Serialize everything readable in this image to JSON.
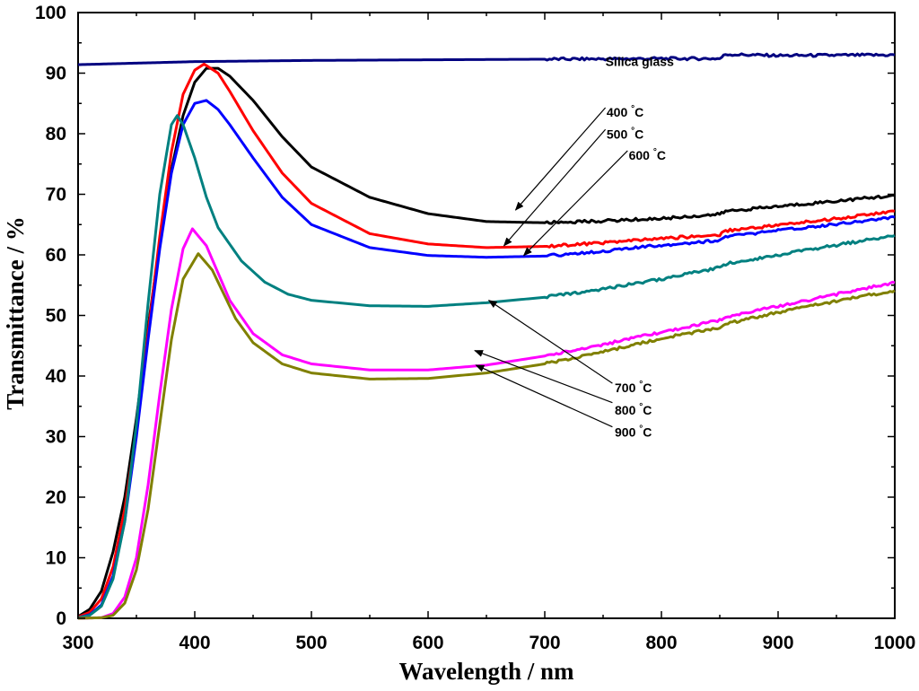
{
  "chart_data": {
    "type": "line",
    "title": "",
    "xlabel": "Wavelength / nm",
    "ylabel": "Transmittance / %",
    "xlim": [
      300,
      1000
    ],
    "ylim": [
      0,
      100
    ],
    "xticks": [
      "300",
      "400",
      "500",
      "600",
      "700",
      "800",
      "900",
      "1000"
    ],
    "yticks": [
      "0",
      "10",
      "20",
      "30",
      "40",
      "50",
      "60",
      "70",
      "80",
      "90",
      "100"
    ],
    "grid": false,
    "series": [
      {
        "name": "Silica glass",
        "color": "#000080",
        "x": [
          300,
          400,
          500,
          600,
          700,
          800,
          850,
          855,
          900,
          1000
        ],
        "y": [
          91.4,
          91.9,
          92.1,
          92.2,
          92.3,
          92.4,
          92.4,
          93.1,
          92.9,
          93.0
        ]
      },
      {
        "name": "400 °C",
        "color": "#000000",
        "x": [
          300,
          310,
          320,
          330,
          340,
          350,
          360,
          370,
          380,
          390,
          400,
          410,
          420,
          430,
          450,
          475,
          500,
          550,
          600,
          650,
          700,
          750,
          800,
          850,
          855,
          900,
          950,
          1000
        ],
        "y": [
          0.3,
          1.5,
          4.5,
          11,
          20,
          33,
          48,
          62,
          74,
          83,
          88.5,
          90.8,
          90.8,
          89.5,
          85.5,
          79.5,
          74.5,
          69.5,
          66.8,
          65.5,
          65.3,
          65.6,
          66.0,
          66.7,
          67.2,
          68.0,
          68.9,
          69.8
        ]
      },
      {
        "name": "500 °C",
        "color": "#ff0000",
        "x": [
          300,
          310,
          320,
          330,
          340,
          350,
          360,
          370,
          380,
          390,
          400,
          408,
          420,
          430,
          450,
          475,
          500,
          550,
          600,
          650,
          700,
          750,
          800,
          850,
          855,
          900,
          950,
          1000
        ],
        "y": [
          0.2,
          1.0,
          3.2,
          8.5,
          18,
          31,
          47,
          63,
          77,
          86.5,
          90.5,
          91.5,
          90,
          87,
          80.5,
          73.5,
          68.5,
          63.5,
          61.8,
          61.2,
          61.4,
          62.0,
          62.7,
          63.3,
          64.0,
          64.9,
          66.0,
          67.2
        ]
      },
      {
        "name": "600 °C",
        "color": "#0000ff",
        "x": [
          300,
          310,
          320,
          330,
          340,
          350,
          360,
          370,
          380,
          390,
          400,
          410,
          420,
          430,
          450,
          475,
          500,
          550,
          600,
          650,
          700,
          750,
          800,
          850,
          855,
          900,
          950,
          1000
        ],
        "y": [
          0.1,
          0.6,
          2.2,
          7,
          16,
          30,
          46,
          61,
          73.5,
          81.5,
          85,
          85.5,
          84,
          81.5,
          76,
          69.5,
          65,
          61.2,
          59.9,
          59.6,
          59.8,
          60.6,
          61.6,
          62.4,
          63.0,
          64.0,
          65.1,
          66.2
        ]
      },
      {
        "name": "700 °C",
        "color": "#008080",
        "x": [
          300,
          310,
          320,
          330,
          340,
          350,
          360,
          370,
          380,
          385,
          390,
          400,
          410,
          420,
          440,
          460,
          480,
          500,
          550,
          600,
          650,
          700,
          750,
          800,
          850,
          855,
          900,
          950,
          1000
        ],
        "y": [
          0.1,
          0.5,
          2.0,
          6.5,
          16,
          32,
          52,
          70,
          81.5,
          83,
          81.5,
          76,
          69.5,
          64.5,
          59,
          55.5,
          53.5,
          52.5,
          51.6,
          51.5,
          52.1,
          53.0,
          54.4,
          56.0,
          57.9,
          58.5,
          60.0,
          61.6,
          63.2
        ]
      },
      {
        "name": "800 °C",
        "color": "#ff00ff",
        "x": [
          300,
          320,
          330,
          340,
          350,
          360,
          370,
          380,
          390,
          398,
          410,
          420,
          430,
          450,
          475,
          500,
          550,
          600,
          650,
          700,
          750,
          800,
          850,
          855,
          900,
          950,
          1000
        ],
        "y": [
          0,
          0.1,
          0.8,
          3.5,
          10,
          22,
          37,
          51,
          61,
          64.3,
          61.5,
          57,
          52.5,
          47,
          43.5,
          42,
          41,
          41,
          41.8,
          43.3,
          45.2,
          47.2,
          49.2,
          49.8,
          51.5,
          53.5,
          55.4
        ]
      },
      {
        "name": "900 °C",
        "color": "#808000",
        "x": [
          300,
          320,
          330,
          340,
          350,
          360,
          370,
          380,
          390,
          403,
          415,
          425,
          435,
          450,
          475,
          500,
          550,
          600,
          650,
          700,
          750,
          800,
          850,
          855,
          900,
          950,
          1000
        ],
        "y": [
          0,
          0.1,
          0.5,
          2.5,
          8,
          18,
          32,
          46,
          56,
          60.2,
          57.5,
          53.5,
          49.5,
          45.5,
          42,
          40.5,
          39.5,
          39.6,
          40.5,
          42,
          44,
          46.2,
          48,
          48.6,
          50.5,
          52.4,
          54.1
        ]
      }
    ],
    "annotations": [
      {
        "text": "Silica glass",
        "label_at": [
          752,
          91.2
        ]
      },
      {
        "text": "400 °C",
        "label_at": [
          753,
          82.8
        ],
        "arrow_from": [
          752,
          84.3
        ],
        "arrow_to": [
          675,
          67.4
        ]
      },
      {
        "text": "500 °C",
        "label_at": [
          753,
          79.2
        ],
        "arrow_from": [
          752,
          80.7
        ],
        "arrow_to": [
          665,
          61.5
        ]
      },
      {
        "text": "600 °C",
        "label_at": [
          772,
          75.7
        ],
        "arrow_from": [
          771,
          77.2
        ],
        "arrow_to": [
          682,
          59.9
        ]
      },
      {
        "text": "700 °C",
        "label_at": [
          760,
          37.3
        ],
        "arrow_from": [
          758,
          38.8
        ],
        "arrow_to": [
          652,
          52.5
        ]
      },
      {
        "text": "800 °C",
        "label_at": [
          760,
          33.6
        ],
        "arrow_from": [
          758,
          35.6
        ],
        "arrow_to": [
          640,
          44.2
        ]
      },
      {
        "text": "900 °C",
        "label_at": [
          760,
          30.0
        ],
        "arrow_from": [
          758,
          31.6
        ],
        "arrow_to": [
          641,
          41.8
        ]
      }
    ]
  }
}
